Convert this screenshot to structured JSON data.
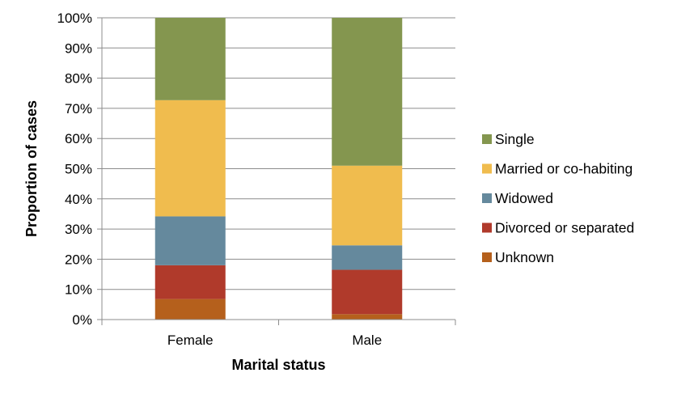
{
  "chart_data": {
    "type": "bar",
    "stacked": true,
    "title": "",
    "xlabel": "Marital status",
    "ylabel": "Proportion of cases",
    "ylim": [
      0,
      100
    ],
    "yticks": [
      "0%",
      "10%",
      "20%",
      "30%",
      "40%",
      "50%",
      "60%",
      "70%",
      "80%",
      "90%",
      "100%"
    ],
    "grid": true,
    "legend_position": "right",
    "categories": [
      "Female",
      "Male"
    ],
    "series": [
      {
        "name": "Unknown",
        "color": "#b5601c",
        "values": [
          6.8,
          1.8
        ]
      },
      {
        "name": "Divorced or separated",
        "color": "#b03a2b",
        "values": [
          11.2,
          14.7
        ]
      },
      {
        "name": "Widowed",
        "color": "#65899d",
        "values": [
          16.2,
          8.1
        ]
      },
      {
        "name": "Married or co-habiting",
        "color": "#f0bc4e",
        "values": [
          38.5,
          26.4
        ]
      },
      {
        "name": "Single",
        "color": "#84964f",
        "values": [
          27.3,
          49.0
        ]
      }
    ]
  }
}
